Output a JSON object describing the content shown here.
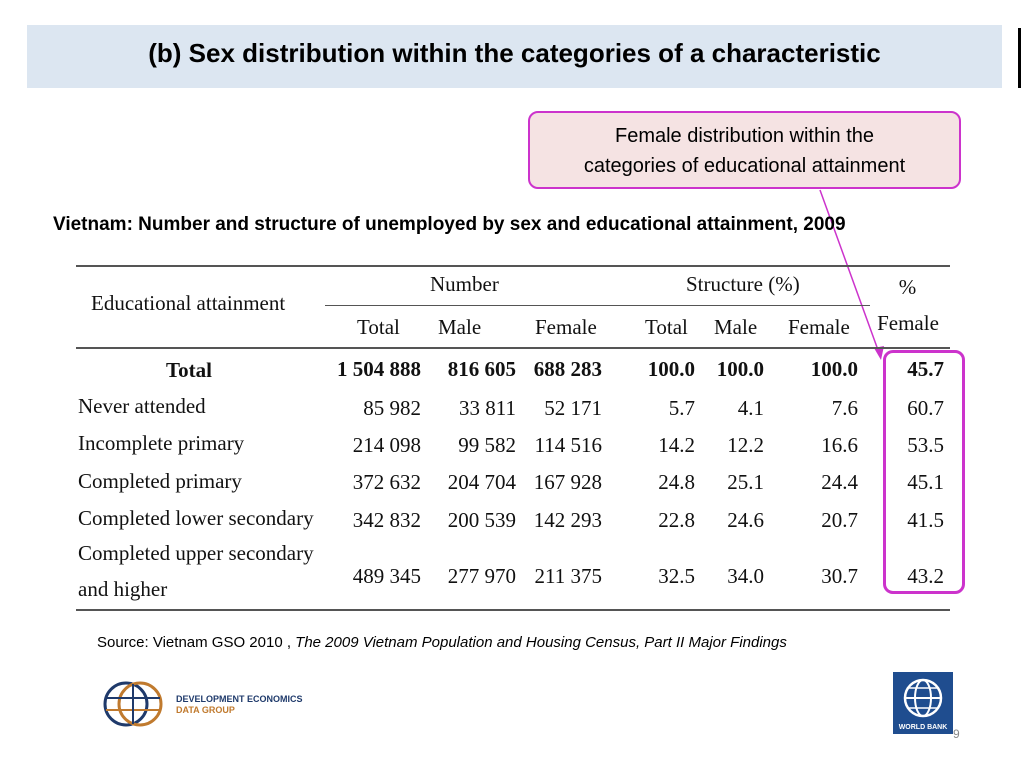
{
  "slide": {
    "title": "(b) Sex distribution within the categories of a characteristic",
    "callout": [
      "Female  distribution within the",
      "categories of educational attainment"
    ],
    "subtitle": "Vietnam: Number and structure of  unemployed by sex and educational attainment, 2009",
    "source_prefix": "Source: Vietnam GSO 2010 , ",
    "source_title": "The 2009 Vietnam Population and Housing Census, Part II Major Findings",
    "page_number": "9",
    "highlight_color": "#cc33cc",
    "title_band_color": "#dce6f1"
  },
  "table": {
    "header": {
      "row_label": "Educational attainment",
      "group_number": "Number",
      "group_structure": "Structure (%)",
      "pct_female_line1": "%",
      "pct_female_line2": "Female",
      "sub": [
        "Total",
        "Male",
        "Female",
        "Total",
        "Male",
        "Female"
      ]
    },
    "rows": [
      {
        "label": "Total",
        "values": [
          "1 504 888",
          "816 605",
          "688 283",
          "100.0",
          "100.0",
          "100.0",
          "45.7"
        ]
      },
      {
        "label": "Never attended",
        "values": [
          "85 982",
          "33 811",
          "52 171",
          "5.7",
          "4.1",
          "7.6",
          "60.7"
        ]
      },
      {
        "label": "Incomplete primary",
        "values": [
          "214 098",
          "99 582",
          "114 516",
          "14.2",
          "12.2",
          "16.6",
          "53.5"
        ]
      },
      {
        "label": "Completed primary",
        "values": [
          "372 632",
          "204 704",
          "167 928",
          "24.8",
          "25.1",
          "24.4",
          "45.1"
        ]
      },
      {
        "label": "Completed lower secondary",
        "values": [
          "342 832",
          "200 539",
          "142 293",
          "22.8",
          "24.6",
          "20.7",
          "41.5"
        ]
      },
      {
        "label": "Completed upper secondary",
        "label2": "and higher",
        "values": [
          "489 345",
          "277 970",
          "211 375",
          "32.5",
          "34.0",
          "30.7",
          "43.2"
        ]
      }
    ]
  },
  "logos": {
    "deg_line1": "DEVELOPMENT ECONOMICS",
    "deg_line2": "DATA GROUP",
    "wb_label": "WORLD BANK"
  }
}
